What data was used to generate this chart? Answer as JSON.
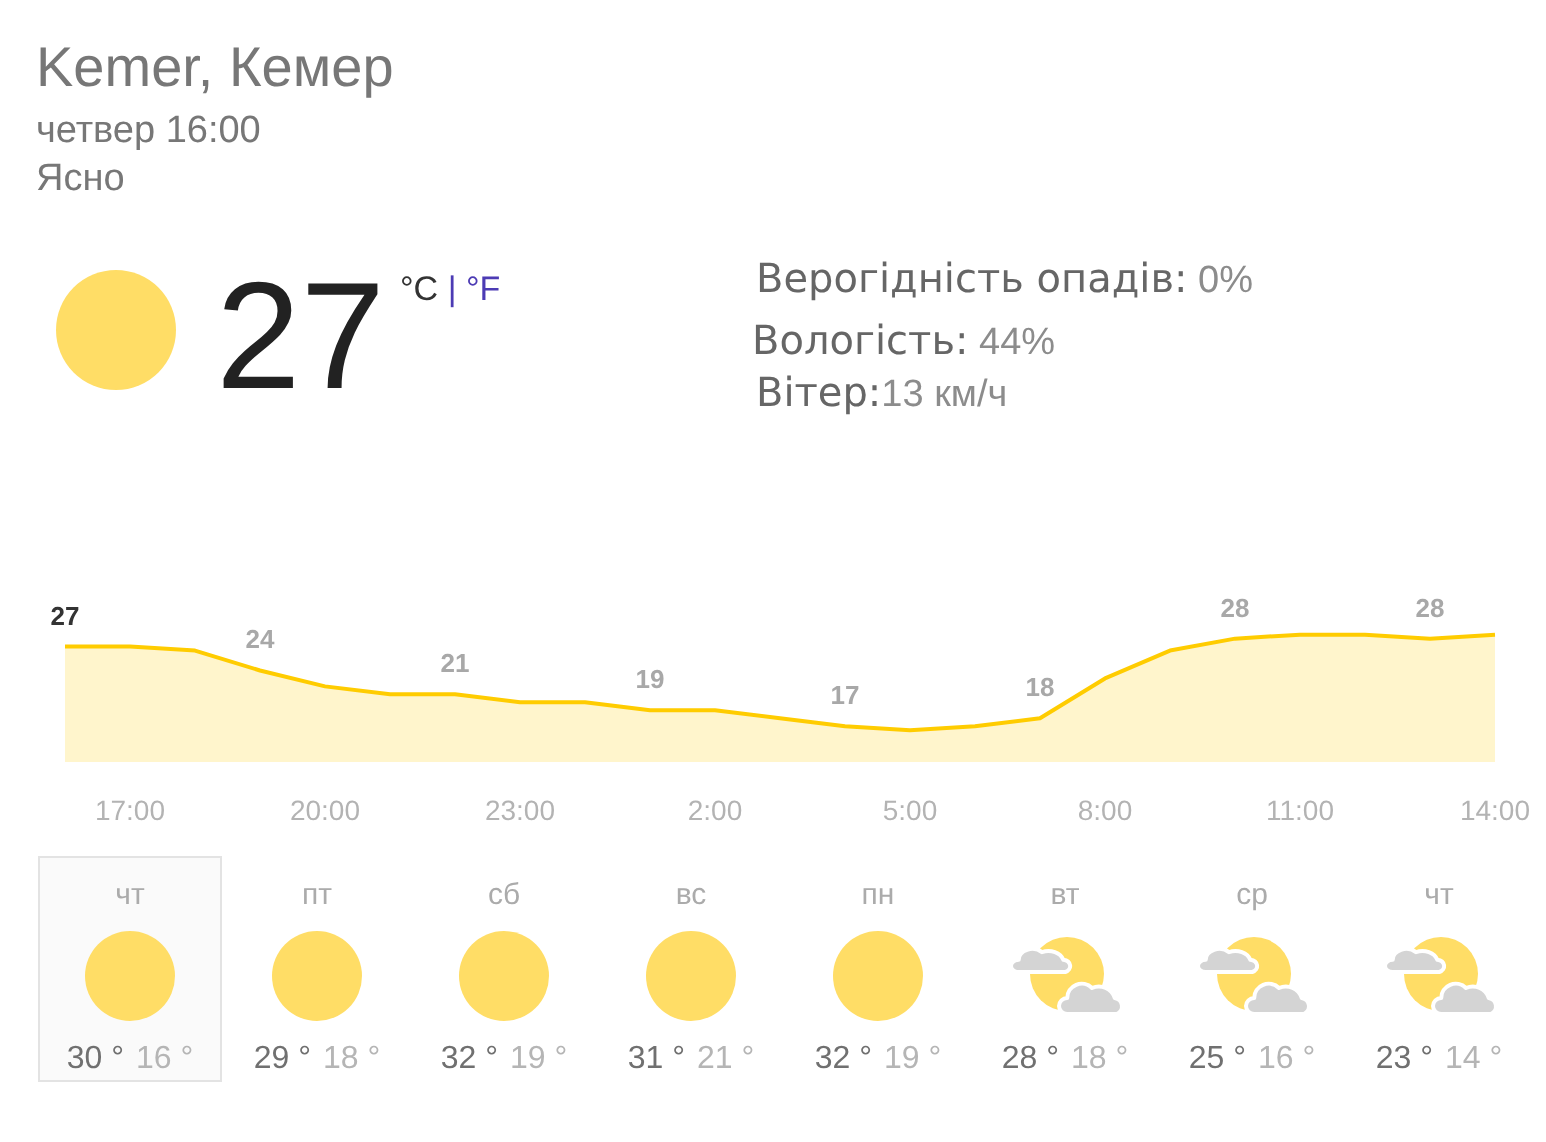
{
  "chart_data": [
    {
      "type": "area",
      "title": "Kemer, Кемер",
      "subtitle": "четвер 16:00",
      "annotations": [
        "Ясно",
        "27",
        "°C | °F",
        "Верогідність опадів: 0%",
        "Вологість: 44%",
        "Вітер:13 км/ч"
      ],
      "categories": [
        null,
        "17:00",
        null,
        null,
        "20:00",
        null,
        null,
        "23:00",
        null,
        null,
        "2:00",
        null,
        null,
        "5:00",
        null,
        null,
        "8:00",
        null,
        null,
        "11:00",
        null,
        null,
        "14:00"
      ],
      "series": [
        {
          "color": "#ffcc00",
          "values": [
            27,
            27,
            26.5,
            24,
            22,
            21,
            21,
            20,
            20,
            19,
            19,
            18,
            17,
            16.5,
            17,
            18,
            23,
            26.5,
            28,
            28.5,
            28.5,
            28,
            28.5
          ],
          "value_labels": [
            "27",
            null,
            null,
            "24",
            null,
            null,
            "21",
            null,
            null,
            "19",
            null,
            null,
            "17",
            null,
            null,
            "18",
            null,
            null,
            "28",
            null,
            null,
            "28",
            null
          ]
        }
      ],
      "tick_labels": "x"
    },
    {
      "type": "other",
      "annotations": [
        "чт",
        "30 °",
        "16 °",
        "пт",
        "29 °",
        "18 °",
        "сб",
        "32 °",
        "19 °",
        "вс",
        "31 °",
        "21 °",
        "пн",
        "32 °",
        "19 °",
        "вт",
        "28 °",
        "18 °",
        "ср",
        "25 °",
        "16 °",
        "чт",
        "23 °",
        "14 °"
      ]
    }
  ]
}
